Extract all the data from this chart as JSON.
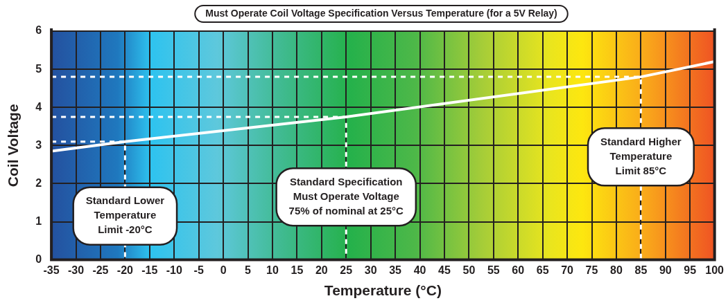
{
  "chart_data": {
    "type": "line",
    "title": "Must Operate Coil Voltage Specification Versus Temperature (for a 5V Relay)",
    "xlabel": "Temperature (°C)",
    "ylabel": "Coil Voltage",
    "xlim": [
      -35,
      100
    ],
    "xticks": [
      -35,
      -30,
      -25,
      -20,
      -15,
      -10,
      -5,
      0,
      5,
      10,
      15,
      20,
      25,
      30,
      35,
      40,
      45,
      50,
      55,
      60,
      65,
      70,
      75,
      80,
      85,
      90,
      95,
      100
    ],
    "ylim": [
      0,
      6
    ],
    "yticks": [
      0,
      1,
      2,
      3,
      4,
      5,
      6
    ],
    "grid": true,
    "legend": false,
    "marker": "none",
    "series": [
      {
        "color": "#ffffff",
        "line_style": "solid",
        "x": [
          -35,
          -20,
          25,
          85,
          100
        ],
        "values": [
          2.85,
          3.1,
          3.75,
          4.8,
          5.2
        ]
      },
      {
        "color": "#ffffff",
        "line_style": "dashed",
        "x": [
          -35,
          -20,
          -20
        ],
        "values": [
          3.1,
          3.1,
          0
        ]
      },
      {
        "color": "#ffffff",
        "line_style": "dashed",
        "x": [
          -35,
          25,
          25
        ],
        "values": [
          3.75,
          3.75,
          0
        ]
      },
      {
        "color": "#ffffff",
        "line_style": "dashed",
        "x": [
          -35,
          85,
          85
        ],
        "values": [
          4.8,
          4.8,
          0
        ]
      }
    ],
    "annotations": [
      {
        "text": "Standard Lower\nTemperature\nLimit -20°C",
        "x": -20,
        "y": 1.15
      },
      {
        "text": "Standard Specification\nMust Operate Voltage\n75% of nominal at 25°C",
        "x": 25,
        "y": 1.65
      },
      {
        "text": "Standard Higher\nTemperature\nLimit 85°C",
        "x": 85,
        "y": 2.7
      }
    ]
  }
}
